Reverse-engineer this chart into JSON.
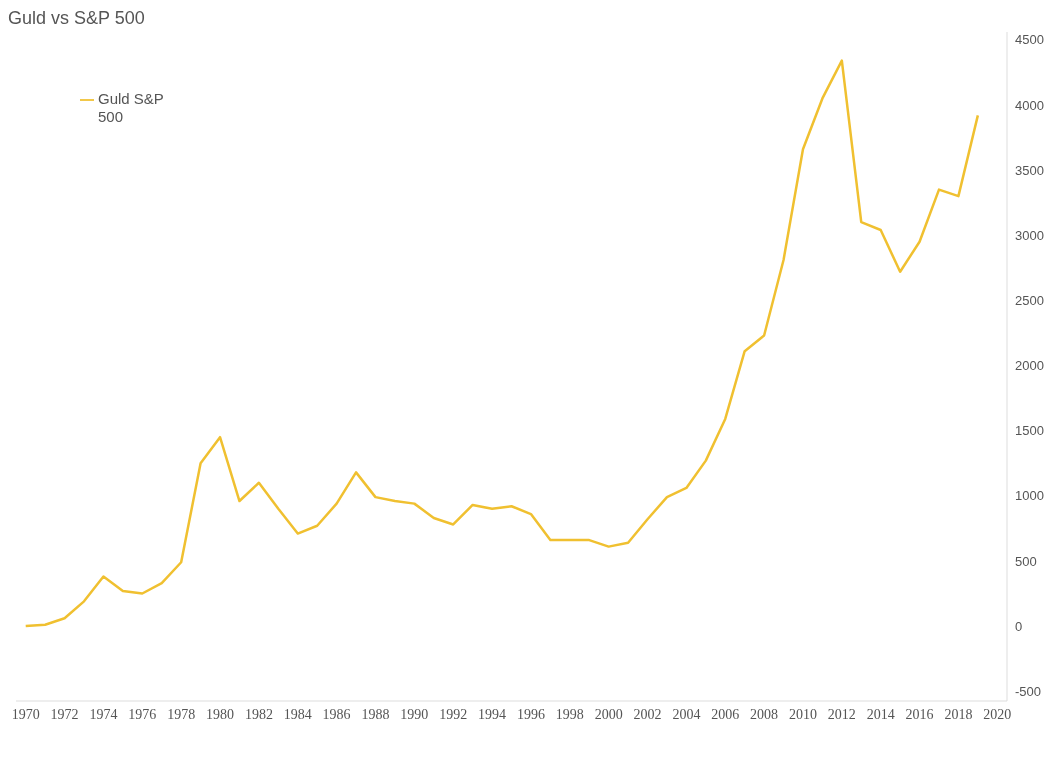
{
  "chart_data": {
    "type": "line",
    "title": "Guld vs S&P 500",
    "x": [
      1970,
      1971,
      1972,
      1973,
      1974,
      1975,
      1976,
      1977,
      1978,
      1979,
      1980,
      1981,
      1982,
      1983,
      1984,
      1985,
      1986,
      1987,
      1988,
      1989,
      1990,
      1991,
      1992,
      1993,
      1994,
      1995,
      1996,
      1997,
      1998,
      1999,
      2000,
      2001,
      2002,
      2003,
      2004,
      2005,
      2006,
      2007,
      2008,
      2009,
      2010,
      2011,
      2012,
      2013,
      2014,
      2015,
      2016,
      2017,
      2018,
      2019
    ],
    "series": [
      {
        "name": "Guld S&P 500",
        "color": "#f0c030",
        "values": [
          0,
          10,
          60,
          190,
          380,
          270,
          250,
          330,
          490,
          1250,
          1450,
          960,
          1100,
          900,
          710,
          770,
          940,
          1180,
          990,
          960,
          940,
          830,
          780,
          930,
          900,
          920,
          860,
          660,
          660,
          660,
          610,
          640,
          820,
          990,
          1060,
          1270,
          1590,
          2110,
          2230,
          2810,
          3660,
          4050,
          4340,
          3100,
          3040,
          2720,
          2950,
          3350,
          3300,
          3920
        ]
      }
    ],
    "xlim": [
      1969.5,
      2020.5
    ],
    "xticks": [
      1970,
      1972,
      1974,
      1976,
      1978,
      1980,
      1982,
      1984,
      1986,
      1988,
      1990,
      1992,
      1994,
      1996,
      1998,
      2000,
      2002,
      2004,
      2006,
      2008,
      2010,
      2012,
      2014,
      2016,
      2018,
      2020
    ],
    "ylim": [
      -575,
      4560
    ],
    "yticks": [
      -500,
      0,
      500,
      1000,
      1500,
      2000,
      2500,
      3000,
      3500,
      4000,
      4500
    ],
    "grid": false,
    "legend": "top left",
    "marker": "none",
    "line_style": "solid"
  }
}
